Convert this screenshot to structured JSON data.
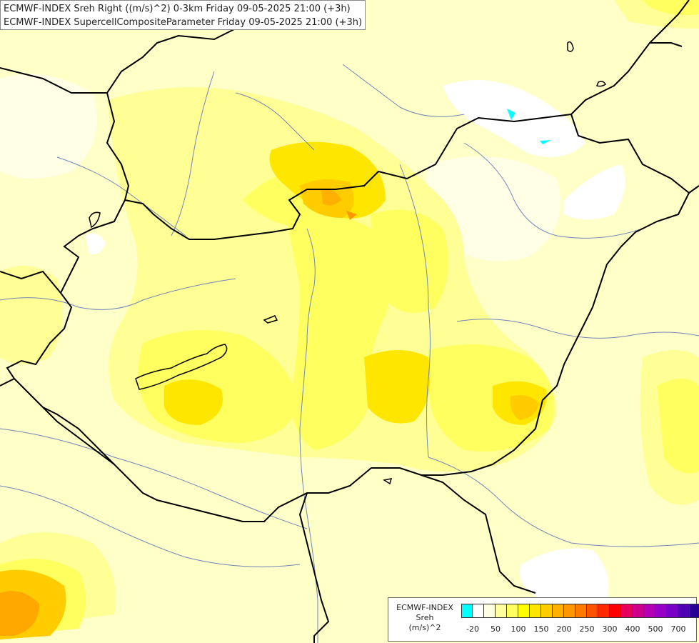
{
  "title": {
    "line1": "ECMWF-INDEX Sreh Right ((m/s)^2) 0-3km Friday 09-05-2025 21:00 (+3h)",
    "line2": "ECMWF-INDEX SupercellCompositeParameter Friday 09-05-2025 21:00 (+3h)"
  },
  "legend": {
    "model": "ECMWF-INDEX",
    "variable": "Sreh",
    "unit": "(m/s)^2",
    "colors": [
      "#00ffff",
      "#ffffff",
      "#ffffe0",
      "#ffffa0",
      "#ffff60",
      "#ffff00",
      "#ffe600",
      "#ffcc00",
      "#ffb000",
      "#ff9600",
      "#ff7800",
      "#ff5000",
      "#ff2800",
      "#ff0000",
      "#e6005a",
      "#cc0088",
      "#b400b4",
      "#9600c8",
      "#7800c8",
      "#5000b4",
      "#280096",
      "#00006e"
    ],
    "ticks": [
      "-20",
      "50",
      "100",
      "150",
      "200",
      "250",
      "300",
      "400",
      "500",
      "700"
    ]
  },
  "colors": {
    "background": "#ffffc8",
    "border": "#000000",
    "river": "#6f86b8"
  }
}
